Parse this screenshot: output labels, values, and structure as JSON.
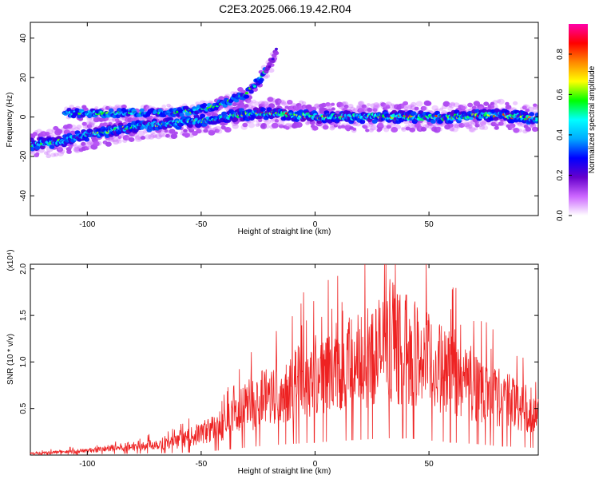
{
  "title": "C2E3.2025.066.19.42.R04",
  "chart_data": [
    {
      "type": "heatmap",
      "xlabel": "Height of straight line (km)",
      "ylabel": "Frequency (Hz)",
      "colorbar_label": "Normalized spectral amplitude",
      "xlim": [
        -125,
        98
      ],
      "ylim": [
        -50,
        48
      ],
      "x_ticks": [
        -100,
        -50,
        0,
        50
      ],
      "y_ticks": [
        -40,
        -20,
        0,
        20,
        40
      ],
      "colorbar_ticks": [
        0.0,
        0.2,
        0.4,
        0.6,
        0.8
      ],
      "colorbar_range": [
        0,
        0.95
      ],
      "colormap": [
        "#ffffff",
        "#cc66ff",
        "#6600cc",
        "#0000ff",
        "#00aaff",
        "#00ffff",
        "#00ff00",
        "#ffff00",
        "#ff8800",
        "#ff0000",
        "#ff00aa"
      ],
      "ridges": [
        {
          "description": "main band",
          "x": [
            -125,
            -110,
            -100,
            -90,
            -80,
            -70,
            -60,
            -50,
            -40,
            -35,
            -20,
            0,
            20,
            40,
            60,
            80,
            98
          ],
          "y": [
            -14,
            -12,
            -9,
            -7,
            -5,
            -4,
            -3,
            -2,
            0,
            1,
            2,
            0,
            0,
            0,
            0,
            1,
            -1
          ]
        },
        {
          "description": "upper branch",
          "x": [
            -110,
            -90,
            -70,
            -55,
            -45,
            -38,
            -30,
            -25,
            -20,
            -17
          ],
          "y": [
            2,
            2,
            2,
            3,
            5,
            8,
            12,
            18,
            26,
            34
          ]
        }
      ],
      "grid": false
    },
    {
      "type": "line",
      "xlabel": "Height of straight line (km)",
      "ylabel": "SNR (10 * v/v)",
      "y_multiplier": "(x10⁴)",
      "xlim": [
        -125,
        98
      ],
      "ylim": [
        0,
        2.05
      ],
      "x_ticks": [
        -100,
        -50,
        0,
        50
      ],
      "y_ticks": [
        0.5,
        1.0,
        1.5,
        2.0
      ],
      "series_color": "#ee2222",
      "envelope_x": [
        -125,
        -100,
        -80,
        -60,
        -50,
        -40,
        -30,
        -20,
        -10,
        0,
        10,
        20,
        30,
        40,
        50,
        60,
        70,
        80,
        98
      ],
      "envelope_y": [
        0.02,
        0.05,
        0.1,
        0.15,
        0.25,
        0.35,
        0.55,
        0.7,
        0.8,
        0.9,
        1.0,
        1.1,
        1.2,
        1.2,
        1.05,
        0.9,
        0.8,
        0.65,
        0.5
      ],
      "grid": false
    }
  ]
}
